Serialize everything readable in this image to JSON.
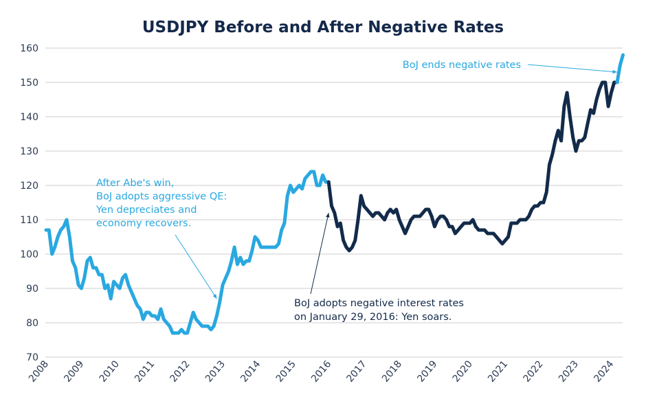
{
  "chart_data": {
    "type": "line",
    "title": "USDJPY Before and After Negative Rates",
    "xlabel": "",
    "ylabel": "",
    "ylim": [
      70,
      160
    ],
    "yticks": [
      70,
      80,
      90,
      100,
      110,
      120,
      130,
      140,
      150,
      160
    ],
    "xticks": [
      "2008",
      "2009",
      "2010",
      "2011",
      "2012",
      "2013",
      "2014",
      "2015",
      "2016",
      "2017",
      "2018",
      "2019",
      "2020",
      "2021",
      "2022",
      "2023",
      "2024"
    ],
    "grid": "horizontal",
    "monthly_values": {
      "2008": [
        107,
        107,
        100,
        102,
        105,
        107,
        108,
        110,
        105,
        98,
        96,
        91
      ],
      "2009": [
        90,
        93,
        98,
        99,
        96,
        96,
        94,
        94,
        90,
        91,
        87,
        92
      ],
      "2010": [
        91,
        90,
        93,
        94,
        91,
        89,
        87,
        85,
        84,
        81,
        83,
        83
      ],
      "2011": [
        82,
        82,
        81,
        84,
        81,
        80,
        79,
        77,
        77,
        77,
        78,
        77
      ],
      "2012": [
        77,
        80,
        83,
        81,
        80,
        79,
        79,
        79,
        78,
        79,
        82,
        86
      ],
      "2013": [
        91,
        93,
        95,
        98,
        102,
        97,
        99,
        97,
        98,
        98,
        101,
        105
      ],
      "2014": [
        104,
        102,
        102,
        102,
        102,
        102,
        102,
        103,
        107,
        109,
        117,
        120
      ],
      "2015": [
        118,
        119,
        120,
        119,
        122,
        123,
        124,
        124,
        120,
        120,
        123,
        121
      ],
      "2016": [
        121,
        114,
        112,
        108,
        109,
        104,
        102,
        101,
        102,
        104,
        110,
        117
      ],
      "2017": [
        114,
        113,
        112,
        111,
        112,
        112,
        111,
        110,
        112,
        113,
        112,
        113
      ],
      "2018": [
        110,
        108,
        106,
        108,
        110,
        111,
        111,
        111,
        112,
        113,
        113,
        111
      ],
      "2019": [
        108,
        110,
        111,
        111,
        110,
        108,
        108,
        106,
        107,
        108,
        109,
        109
      ],
      "2020": [
        109,
        110,
        108,
        107,
        107,
        107,
        106,
        106,
        106,
        105,
        104,
        103
      ],
      "2021": [
        104,
        105,
        109,
        109,
        109,
        110,
        110,
        110,
        111,
        113,
        114,
        114
      ],
      "2022": [
        115,
        115,
        118,
        126,
        129,
        133,
        136,
        133,
        143,
        147,
        140,
        134
      ],
      "2023": [
        130,
        133,
        133,
        134,
        138,
        142,
        141,
        145,
        148,
        150,
        150,
        143
      ],
      "2024": [
        147,
        150,
        150,
        155,
        158
      ]
    },
    "series": [
      {
        "from": "2008-01",
        "to": "2016-01",
        "color": "#29a8e0"
      },
      {
        "from": "2016-01",
        "to": "2024-03",
        "color": "#132b4a"
      },
      {
        "from": "2024-03",
        "to": "2024-05",
        "color": "#29a8e0"
      }
    ],
    "annotations": [
      {
        "lines": [
          "After Abe's win,",
          "BoJ adopts aggressive QE:",
          "Yen depreciates and",
          "economy recovers."
        ],
        "color": "#29a8e0",
        "points_to": [
          "2012-11",
          87
        ]
      },
      {
        "lines": [
          "BoJ adopts negative interest rates",
          "on January 29, 2016: Yen soars."
        ],
        "color": "#132b4a",
        "points_to": [
          "2016-01",
          112
        ]
      },
      {
        "lines": [
          "BoJ ends negative rates"
        ],
        "color": "#29a8e0",
        "points_to": [
          "2024-03",
          153
        ]
      }
    ]
  }
}
